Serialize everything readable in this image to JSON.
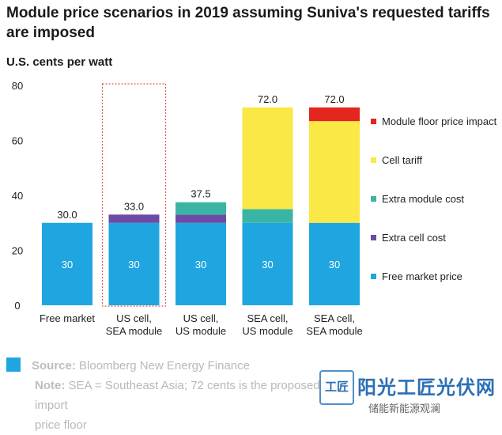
{
  "title": "Module price scenarios in 2019 assuming Suniva's requested tariffs are imposed",
  "ylabel": "U.S. cents per watt",
  "colors": {
    "free_market_price": "#1fa6e0",
    "extra_cell_cost": "#6d4aa3",
    "extra_module_cost": "#3ab5a3",
    "cell_tariff": "#f9e845",
    "module_floor_price_impact": "#e3261e",
    "highlight_border": "#e05b52"
  },
  "footer": {
    "source_label": "Source:",
    "source_text": "Bloomberg New Energy Finance",
    "note_label": "Note:",
    "note_text": "SEA = Southeast Asia; 72 cents is the proposed 2019 import",
    "note_text_2": "price floor"
  },
  "watermark": {
    "logo_text": "工匠",
    "main_text": "阳光工匠光伏网",
    "sub_text": "储能新能源观澜"
  },
  "chart_data": {
    "type": "bar",
    "stacked": true,
    "title": "Module price scenarios in 2019 assuming Suniva's requested tariffs are imposed",
    "ylabel": "U.S. cents per watt",
    "ylim": [
      0,
      80
    ],
    "yticks": [
      0,
      20,
      40,
      60,
      80
    ],
    "grid": false,
    "legend_position": "right",
    "categories": [
      "Free market",
      "US cell, SEA module",
      "US cell, US module",
      "SEA cell, US module",
      "SEA cell, SEA module"
    ],
    "category_lines": [
      [
        "Free market"
      ],
      [
        "US cell,",
        "SEA module"
      ],
      [
        "US cell,",
        "US module"
      ],
      [
        "SEA cell,",
        "US module"
      ],
      [
        "SEA cell,",
        "SEA module"
      ]
    ],
    "highlighted_category": "US cell, SEA module",
    "totals": [
      "30.0",
      "33.0",
      "37.5",
      "72.0",
      "72.0"
    ],
    "base_labels": [
      "30",
      "30",
      "30",
      "30",
      "30"
    ],
    "series": [
      {
        "name": "Free market price",
        "color": "#1fa6e0",
        "values": [
          30,
          30,
          30,
          30,
          30
        ]
      },
      {
        "name": "Extra cell cost",
        "color": "#6d4aa3",
        "values": [
          0,
          3,
          3,
          0,
          0
        ]
      },
      {
        "name": "Extra module cost",
        "color": "#3ab5a3",
        "values": [
          0,
          0,
          4.5,
          5,
          0
        ]
      },
      {
        "name": "Cell tariff",
        "color": "#f9e845",
        "values": [
          0,
          0,
          0,
          37,
          37
        ]
      },
      {
        "name": "Module floor price impact",
        "color": "#e3261e",
        "values": [
          0,
          0,
          0,
          0,
          5
        ]
      }
    ],
    "legend_order": [
      "Module floor price impact",
      "Cell tariff",
      "Extra module cost",
      "Extra cell cost",
      "Free market price"
    ]
  }
}
